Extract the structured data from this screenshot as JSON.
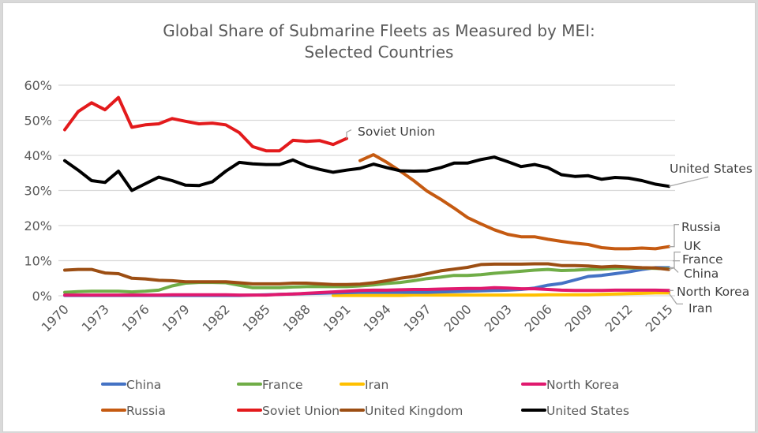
{
  "chart_data": {
    "type": "line",
    "title": "Global Share of Submarine Fleets as Measured by MEI:",
    "subtitle": "Selected Countries",
    "xlabel": "",
    "ylabel": "",
    "ylim": [
      0,
      60
    ],
    "xlim": [
      1970,
      2015
    ],
    "grid": true,
    "legend_position": "bottom",
    "y_ticks": [
      "0%",
      "10%",
      "20%",
      "30%",
      "40%",
      "50%",
      "60%"
    ],
    "x_ticks": [
      "1970",
      "1973",
      "1976",
      "1979",
      "1982",
      "1985",
      "1988",
      "1991",
      "1994",
      "1997",
      "2000",
      "2003",
      "2006",
      "2009",
      "2012",
      "2015"
    ],
    "series": [
      {
        "name": "China",
        "color": "#4472c4",
        "start": 1970,
        "values": [
          0.1,
          0.1,
          0.1,
          0.1,
          0.1,
          0.1,
          0.1,
          0.1,
          0.1,
          0.1,
          0.1,
          0.1,
          0.1,
          0.1,
          0.2,
          0.3,
          0.4,
          0.5,
          0.6,
          0.7,
          0.8,
          0.9,
          1.0,
          1.0,
          1.0,
          1.0,
          1.0,
          1.0,
          1.1,
          1.2,
          1.3,
          1.4,
          1.5,
          1.6,
          1.8,
          2.2,
          3.0,
          3.5,
          4.5,
          5.5,
          5.8,
          6.3,
          6.8,
          7.5,
          8.0,
          8.0
        ]
      },
      {
        "name": "France",
        "color": "#70ad47",
        "start": 1970,
        "values": [
          1.0,
          1.2,
          1.3,
          1.3,
          1.3,
          1.1,
          1.3,
          1.6,
          2.8,
          3.6,
          3.8,
          3.8,
          3.7,
          3.0,
          2.3,
          2.3,
          2.3,
          2.5,
          2.6,
          2.6,
          2.6,
          2.6,
          2.8,
          3.1,
          3.5,
          3.8,
          4.3,
          4.9,
          5.3,
          5.8,
          5.8,
          6.0,
          6.4,
          6.7,
          7.0,
          7.3,
          7.5,
          7.2,
          7.3,
          7.5,
          7.6,
          7.8,
          7.9,
          7.9,
          7.8,
          7.7
        ]
      },
      {
        "name": "Iran",
        "color": "#ffc000",
        "start": 1990,
        "values": [
          0.1,
          0.1,
          0.1,
          0.1,
          0.1,
          0.1,
          0.2,
          0.2,
          0.2,
          0.2,
          0.2,
          0.2,
          0.2,
          0.2,
          0.2,
          0.2,
          0.3,
          0.3,
          0.3,
          0.3,
          0.4,
          0.5,
          0.6,
          0.7,
          0.8,
          0.8
        ]
      },
      {
        "name": "North Korea",
        "color": "#e0196e",
        "start": 1970,
        "values": [
          0.2,
          0.2,
          0.2,
          0.2,
          0.2,
          0.2,
          0.2,
          0.2,
          0.3,
          0.3,
          0.3,
          0.3,
          0.3,
          0.2,
          0.2,
          0.2,
          0.4,
          0.5,
          0.7,
          0.9,
          1.1,
          1.3,
          1.5,
          1.6,
          1.6,
          1.7,
          1.8,
          1.8,
          1.9,
          2.0,
          2.1,
          2.1,
          2.3,
          2.2,
          2.0,
          2.0,
          1.8,
          1.6,
          1.5,
          1.5,
          1.5,
          1.6,
          1.6,
          1.6,
          1.6,
          1.5
        ]
      },
      {
        "name": "Russia",
        "color": "#c55a11",
        "start": 1992,
        "values": [
          38.5,
          40.2,
          38.0,
          35.5,
          32.8,
          29.8,
          27.5,
          25.0,
          22.3,
          20.5,
          18.8,
          17.5,
          16.8,
          16.8,
          16.1,
          15.5,
          15.0,
          14.6,
          13.7,
          13.4,
          13.4,
          13.6,
          13.4,
          14.0
        ]
      },
      {
        "name": "Soviet Union",
        "color": "#e31a1c",
        "start": 1970,
        "values": [
          47.3,
          52.5,
          55.0,
          53.0,
          56.5,
          48.0,
          48.7,
          49.0,
          50.5,
          49.7,
          49.0,
          49.2,
          48.7,
          46.5,
          42.5,
          41.3,
          41.3,
          44.3,
          44.0,
          44.2,
          43.1,
          44.8
        ]
      },
      {
        "name": "United Kingdom",
        "color": "#9c4e13",
        "start": 1970,
        "values": [
          7.3,
          7.5,
          7.5,
          6.5,
          6.3,
          5.0,
          4.8,
          4.4,
          4.3,
          4.0,
          4.0,
          4.0,
          4.0,
          3.7,
          3.4,
          3.4,
          3.4,
          3.6,
          3.6,
          3.4,
          3.2,
          3.2,
          3.3,
          3.7,
          4.3,
          5.0,
          5.5,
          6.3,
          7.1,
          7.6,
          8.1,
          8.9,
          9.0,
          9.0,
          9.0,
          9.1,
          9.1,
          8.6,
          8.6,
          8.5,
          8.2,
          8.4,
          8.2,
          8.0,
          7.9,
          7.5
        ]
      },
      {
        "name": "United States",
        "color": "#000000",
        "start": 1970,
        "values": [
          38.5,
          35.8,
          32.8,
          32.3,
          35.5,
          30.0,
          31.9,
          33.8,
          32.8,
          31.5,
          31.4,
          32.5,
          35.5,
          38.0,
          37.6,
          37.4,
          37.4,
          38.7,
          37.0,
          36.0,
          35.2,
          35.8,
          36.3,
          37.5,
          36.5,
          35.6,
          35.5,
          35.6,
          36.5,
          37.8,
          37.8,
          38.8,
          39.5,
          38.2,
          36.8,
          37.4,
          36.5,
          34.5,
          34.0,
          34.2,
          33.2,
          33.7,
          33.5,
          32.8,
          31.8,
          31.2
        ]
      }
    ],
    "line_labels": [
      {
        "series": "Soviet Union",
        "text": "Soviet Union"
      },
      {
        "series": "United States",
        "text": "United States"
      },
      {
        "series": "Russia",
        "text": "Russia"
      },
      {
        "series": "United Kingdom",
        "text": "UK"
      },
      {
        "series": "France",
        "text": "France"
      },
      {
        "series": "China",
        "text": "China"
      },
      {
        "series": "North Korea",
        "text": "North Korea"
      },
      {
        "series": "Iran",
        "text": "Iran"
      }
    ],
    "legend": [
      {
        "name": "China",
        "color": "#4472c4"
      },
      {
        "name": "France",
        "color": "#70ad47"
      },
      {
        "name": "Iran",
        "color": "#ffc000"
      },
      {
        "name": "North Korea",
        "color": "#e0196e"
      },
      {
        "name": "Russia",
        "color": "#c55a11"
      },
      {
        "name": "Soviet Union",
        "color": "#e31a1c"
      },
      {
        "name": "United Kingdom",
        "color": "#9c4e13"
      },
      {
        "name": "United States",
        "color": "#000000"
      }
    ]
  }
}
